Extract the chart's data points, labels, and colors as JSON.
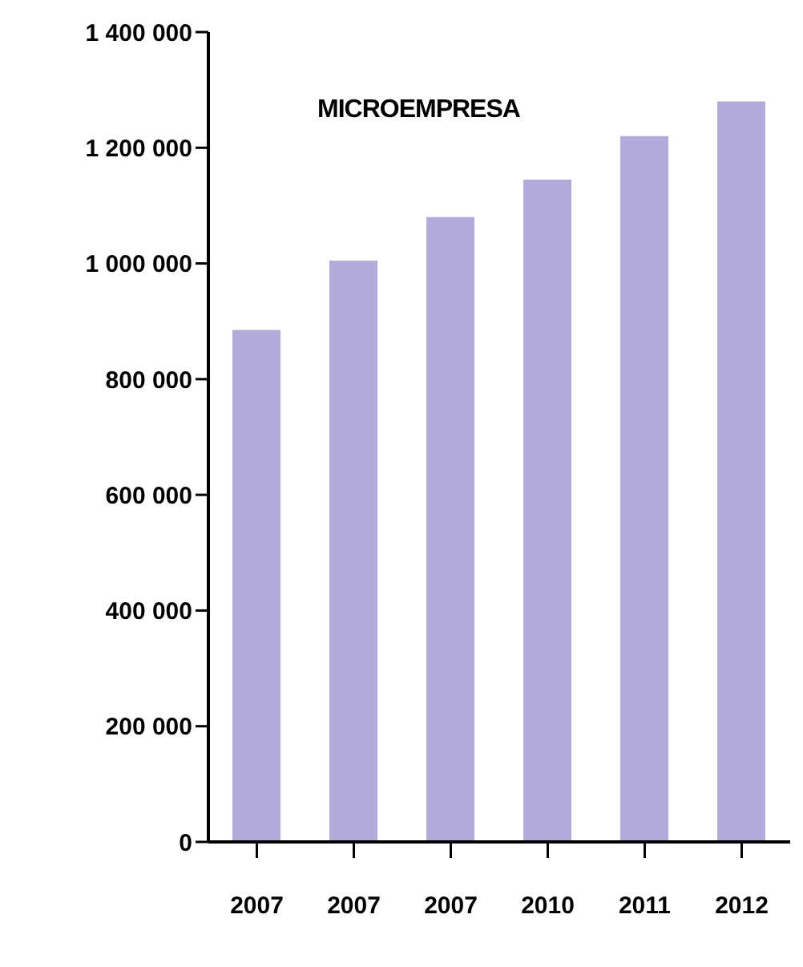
{
  "chart_data": {
    "type": "bar",
    "title": "MICROEMPRESA",
    "categories": [
      "2007",
      "2007",
      "2007",
      "2010",
      "2011",
      "2012"
    ],
    "values": [
      885000,
      1005000,
      1080000,
      1145000,
      1220000,
      1280000
    ],
    "color": "#b3abd9",
    "ylim": [
      0,
      1400000
    ],
    "yticks": [
      0,
      {
        "value": 200000,
        "label": "200 000"
      },
      {
        "value": 400000,
        "label": "400 000"
      },
      {
        "value": 600000,
        "label": "600 000"
      },
      {
        "value": 800000,
        "label": "800 000"
      },
      {
        "value": 1000000,
        "label": "1 000 000"
      },
      {
        "value": 1200000,
        "label": "1 200 000"
      },
      {
        "value": 1400000,
        "label": "1 400 000"
      }
    ],
    "grid": false,
    "legend": false
  }
}
